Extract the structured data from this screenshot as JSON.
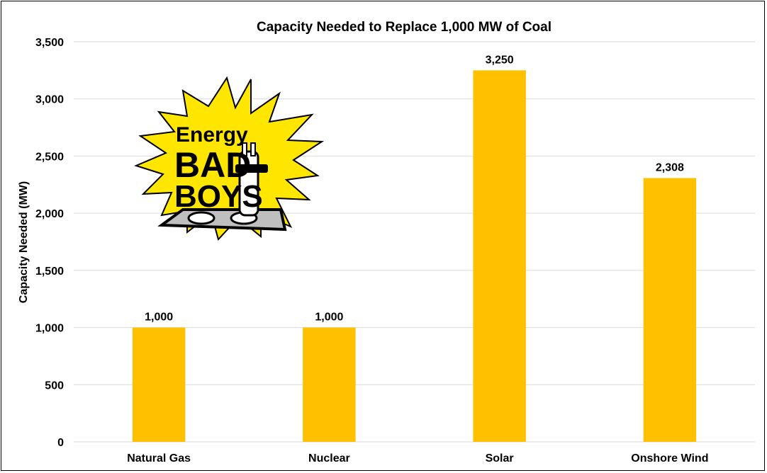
{
  "chart_data": {
    "type": "bar",
    "title": "Capacity Needed to Replace 1,000 MW of Coal",
    "xlabel": "",
    "ylabel": "Capacity Needed (MW)",
    "categories": [
      "Natural Gas",
      "Nuclear",
      "Solar",
      "Onshore Wind"
    ],
    "values": [
      1000,
      1000,
      3250,
      2308
    ],
    "data_labels": [
      "1,000",
      "1,000",
      "3,250",
      "2,308"
    ],
    "ylim": [
      0,
      3500
    ],
    "yticks": [
      0,
      500,
      1000,
      1500,
      2000,
      2500,
      3000,
      3500
    ],
    "ytick_labels": [
      "0",
      "500",
      "1,000",
      "1,500",
      "2,000",
      "2,500",
      "3,000",
      "3,500"
    ],
    "grid": true,
    "legend": "none",
    "bar_color": "#FFC000",
    "grid_color": "#D9D9D9"
  },
  "logo": {
    "text_line1": "Energy",
    "text_line2": "BAD",
    "text_line3": "BOYS",
    "burst_color": "#FFE600",
    "icon": "plug-with-sunglasses-logo"
  }
}
